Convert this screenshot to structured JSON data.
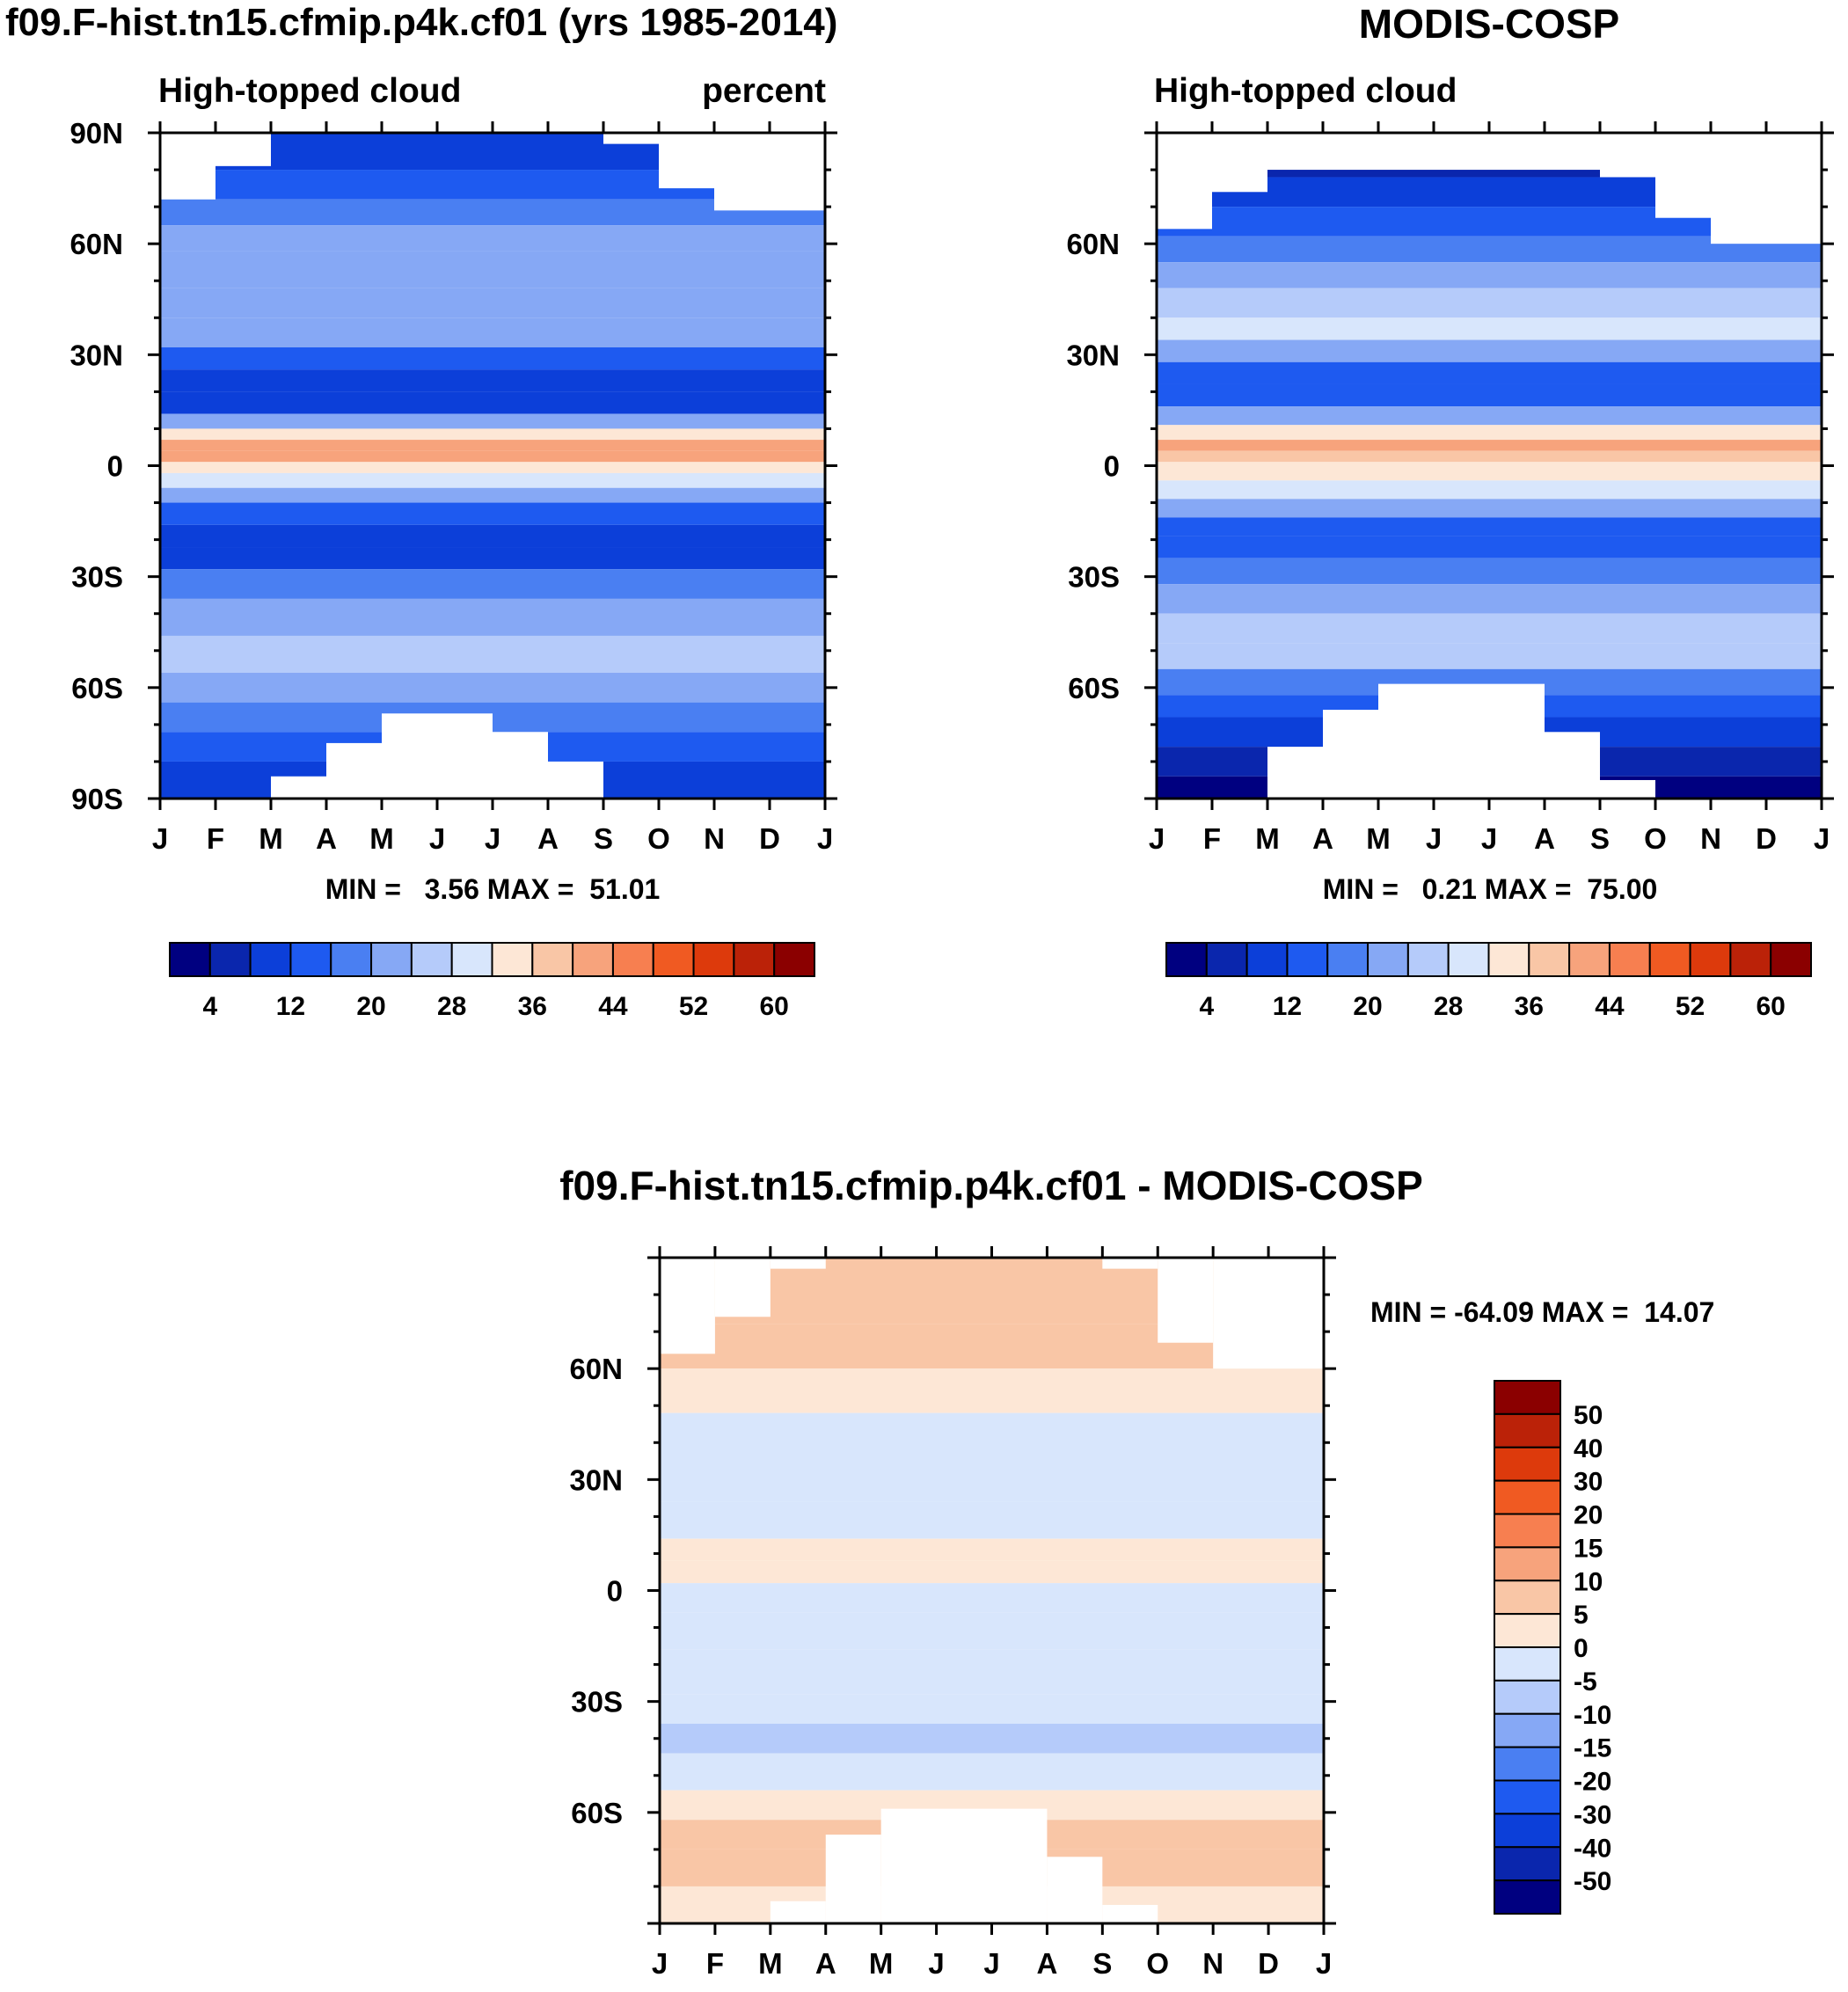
{
  "months": [
    "J",
    "F",
    "M",
    "A",
    "M",
    "J",
    "J",
    "A",
    "S",
    "O",
    "N",
    "D",
    "J"
  ],
  "contour_colors": [
    "#000080",
    "#0a26ad",
    "#0c3fd9",
    "#1e5af0",
    "#4a7ff2",
    "#86a8f5",
    "#b5cbfa",
    "#d8e6fc",
    "#fde7d6",
    "#f9c6a6",
    "#f7a37c",
    "#f77f50",
    "#f05a22",
    "#dd3a0c",
    "#bb2208",
    "#8b0000"
  ],
  "colors": {
    "white": "#ffffff",
    "frame": "#000000"
  },
  "chart_data": [
    {
      "id": "model",
      "type": "heatmap",
      "title": "f09.F-hist.tn15.cfmip.p4k.cf01 (yrs 1985-2014)",
      "subtitle_left": "High-topped cloud",
      "subtitle_right": "percent",
      "x": "months",
      "ylabels": [
        "90N",
        "60N",
        "30N",
        "0",
        "30S",
        "60S",
        "90S"
      ],
      "ylim": [
        -90,
        90
      ],
      "stats": "MIN =   3.56 MAX =  51.01",
      "colorbar_labels": [
        "4",
        "12",
        "20",
        "28",
        "36",
        "44",
        "52",
        "60"
      ],
      "bands": [
        {
          "lat": 90,
          "value": 8
        },
        {
          "lat": 80,
          "value": 11
        },
        {
          "lat": 72,
          "value": 15
        },
        {
          "lat": 65,
          "value": 18
        },
        {
          "lat": 58,
          "value": 22
        },
        {
          "lat": 48,
          "value": 24
        },
        {
          "lat": 40,
          "value": 22
        },
        {
          "lat": 32,
          "value": 18
        },
        {
          "lat": 26,
          "value": 12
        },
        {
          "lat": 20,
          "value": 9
        },
        {
          "lat": 14,
          "value": 14
        },
        {
          "lat": 10,
          "value": 26
        },
        {
          "lat": 7,
          "value": 38
        },
        {
          "lat": 4,
          "value": 44
        },
        {
          "lat": 1,
          "value": 36
        },
        {
          "lat": -2,
          "value": 30
        },
        {
          "lat": -6,
          "value": 26
        },
        {
          "lat": -10,
          "value": 20
        },
        {
          "lat": -16,
          "value": 11
        },
        {
          "lat": -22,
          "value": 9
        },
        {
          "lat": -28,
          "value": 14
        },
        {
          "lat": -36,
          "value": 19
        },
        {
          "lat": -46,
          "value": 24
        },
        {
          "lat": -56,
          "value": 26
        },
        {
          "lat": -64,
          "value": 21
        },
        {
          "lat": -72,
          "value": 15
        },
        {
          "lat": -80,
          "value": 11
        },
        {
          "lat": -90,
          "value": 8
        }
      ],
      "missing": [
        {
          "lat_top": 90,
          "lat_bottom": 72,
          "month_start": 0,
          "month_end": 1
        },
        {
          "lat_top": 90,
          "lat_bottom": 81,
          "month_start": 1,
          "month_end": 2
        },
        {
          "lat_top": 90,
          "lat_bottom": 87,
          "month_start": 8,
          "month_end": 9
        },
        {
          "lat_top": 90,
          "lat_bottom": 75,
          "month_start": 9,
          "month_end": 10
        },
        {
          "lat_top": 90,
          "lat_bottom": 69,
          "month_start": 10,
          "month_end": 12
        },
        {
          "lat_top": -84,
          "lat_bottom": -90,
          "month_start": 2,
          "month_end": 3
        },
        {
          "lat_top": -75,
          "lat_bottom": -90,
          "month_start": 3,
          "month_end": 4
        },
        {
          "lat_top": -67,
          "lat_bottom": -90,
          "month_start": 4,
          "month_end": 6
        },
        {
          "lat_top": -72,
          "lat_bottom": -90,
          "month_start": 6,
          "month_end": 7
        },
        {
          "lat_top": -80,
          "lat_bottom": -90,
          "month_start": 7,
          "month_end": 8
        }
      ]
    },
    {
      "id": "obs",
      "type": "heatmap",
      "title": "MODIS-COSP",
      "subtitle_left": "High-topped cloud",
      "subtitle_right": "",
      "x": "months",
      "ylabels": [
        "",
        "60N",
        "30N",
        "0",
        "30S",
        "60S",
        ""
      ],
      "ylim": [
        -90,
        90
      ],
      "stats": "MIN =   0.21 MAX =  75.00",
      "colorbar_labels": [
        "4",
        "12",
        "20",
        "28",
        "36",
        "44",
        "52",
        "60"
      ],
      "bands": [
        {
          "lat": 90,
          "value": 3
        },
        {
          "lat": 78,
          "value": 7
        },
        {
          "lat": 70,
          "value": 12
        },
        {
          "lat": 62,
          "value": 16
        },
        {
          "lat": 55,
          "value": 20
        },
        {
          "lat": 48,
          "value": 24
        },
        {
          "lat": 40,
          "value": 30
        },
        {
          "lat": 34,
          "value": 26
        },
        {
          "lat": 28,
          "value": 18
        },
        {
          "lat": 22,
          "value": 12
        },
        {
          "lat": 16,
          "value": 14
        },
        {
          "lat": 11,
          "value": 26
        },
        {
          "lat": 7,
          "value": 38
        },
        {
          "lat": 4,
          "value": 42
        },
        {
          "lat": 1,
          "value": 36
        },
        {
          "lat": -4,
          "value": 34
        },
        {
          "lat": -9,
          "value": 26
        },
        {
          "lat": -14,
          "value": 18
        },
        {
          "lat": -19,
          "value": 10
        },
        {
          "lat": -25,
          "value": 14
        },
        {
          "lat": -32,
          "value": 20
        },
        {
          "lat": -40,
          "value": 26
        },
        {
          "lat": -48,
          "value": 28
        },
        {
          "lat": -55,
          "value": 22
        },
        {
          "lat": -62,
          "value": 17
        },
        {
          "lat": -68,
          "value": 12
        },
        {
          "lat": -76,
          "value": 7
        },
        {
          "lat": -84,
          "value": 4
        },
        {
          "lat": -90,
          "value": 3
        }
      ],
      "missing": [
        {
          "lat_top": 90,
          "lat_bottom": 64,
          "month_start": 0,
          "month_end": 1
        },
        {
          "lat_top": 90,
          "lat_bottom": 74,
          "month_start": 1,
          "month_end": 2
        },
        {
          "lat_top": 90,
          "lat_bottom": 80,
          "month_start": 2,
          "month_end": 8
        },
        {
          "lat_top": 90,
          "lat_bottom": 78,
          "month_start": 8,
          "month_end": 9
        },
        {
          "lat_top": 90,
          "lat_bottom": 67,
          "month_start": 9,
          "month_end": 10
        },
        {
          "lat_top": 90,
          "lat_bottom": 60,
          "month_start": 10,
          "month_end": 12
        },
        {
          "lat_top": -76,
          "lat_bottom": -90,
          "month_start": 2,
          "month_end": 3
        },
        {
          "lat_top": -66,
          "lat_bottom": -90,
          "month_start": 3,
          "month_end": 4
        },
        {
          "lat_top": -59,
          "lat_bottom": -90,
          "month_start": 4,
          "month_end": 7
        },
        {
          "lat_top": -72,
          "lat_bottom": -90,
          "month_start": 7,
          "month_end": 8
        },
        {
          "lat_top": -85,
          "lat_bottom": -90,
          "month_start": 8,
          "month_end": 9
        }
      ]
    },
    {
      "id": "diff",
      "type": "heatmap",
      "title": "f09.F-hist.tn15.cfmip.p4k.cf01 - MODIS-COSP",
      "subtitle_left": "",
      "subtitle_right": "",
      "x": "months",
      "ylabels": [
        "",
        "60N",
        "30N",
        "0",
        "30S",
        "60S",
        ""
      ],
      "ylim": [
        -90,
        90
      ],
      "stats": "MIN = -64.09 MAX =  14.07",
      "colorbar_labels": [
        "50",
        "40",
        "30",
        "20",
        "15",
        "10",
        "5",
        "0",
        "-5",
        "-10",
        "-15",
        "-20",
        "-30",
        "-40",
        "-50"
      ],
      "bands": [
        {
          "lat": 90,
          "value": 7
        },
        {
          "lat": 72,
          "value": 8
        },
        {
          "lat": 60,
          "value": 3
        },
        {
          "lat": 48,
          "value": -2
        },
        {
          "lat": 34,
          "value": -3
        },
        {
          "lat": 24,
          "value": 2
        },
        {
          "lat": 14,
          "value": -3
        },
        {
          "lat": 8,
          "value": 3
        },
        {
          "lat": 2,
          "value": -2
        },
        {
          "lat": -6,
          "value": 1
        },
        {
          "lat": -16,
          "value": -3
        },
        {
          "lat": -28,
          "value": 2
        },
        {
          "lat": -36,
          "value": -4
        },
        {
          "lat": -44,
          "value": -7
        },
        {
          "lat": -54,
          "value": -3
        },
        {
          "lat": -62,
          "value": 4
        },
        {
          "lat": -70,
          "value": 7
        },
        {
          "lat": -80,
          "value": 5
        },
        {
          "lat": -90,
          "value": 4
        }
      ],
      "missing": [
        {
          "lat_top": 90,
          "lat_bottom": 64,
          "month_start": 0,
          "month_end": 1
        },
        {
          "lat_top": 90,
          "lat_bottom": 74,
          "month_start": 1,
          "month_end": 2
        },
        {
          "lat_top": 90,
          "lat_bottom": 87,
          "month_start": 2,
          "month_end": 3
        },
        {
          "lat_top": 90,
          "lat_bottom": 87,
          "month_start": 8,
          "month_end": 9
        },
        {
          "lat_top": 90,
          "lat_bottom": 67,
          "month_start": 9,
          "month_end": 10
        },
        {
          "lat_top": 90,
          "lat_bottom": 60,
          "month_start": 10,
          "month_end": 12
        },
        {
          "lat_top": -84,
          "lat_bottom": -90,
          "month_start": 2,
          "month_end": 3
        },
        {
          "lat_top": -66,
          "lat_bottom": -90,
          "month_start": 3,
          "month_end": 4
        },
        {
          "lat_top": -59,
          "lat_bottom": -90,
          "month_start": 4,
          "month_end": 7
        },
        {
          "lat_top": -72,
          "lat_bottom": -90,
          "month_start": 7,
          "month_end": 8
        },
        {
          "lat_top": -85,
          "lat_bottom": -90,
          "month_start": 8,
          "month_end": 9
        }
      ]
    }
  ]
}
